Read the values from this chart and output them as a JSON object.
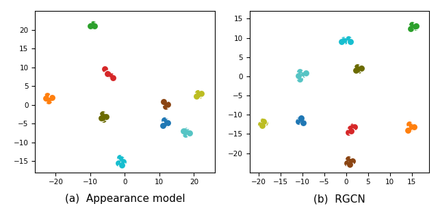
{
  "subplot_a": {
    "title": "(a)  Appearance model",
    "xlim": [
      -26,
      26
    ],
    "ylim": [
      -18,
      25
    ],
    "xticks": [
      -20,
      -10,
      0,
      10,
      20
    ],
    "yticks": [
      -15,
      -10,
      -5,
      0,
      5,
      10,
      15,
      20
    ],
    "clusters": [
      {
        "color": "#2ca02c",
        "points": [
          [
            -9.8,
            21.2
          ],
          [
            -9.2,
            21.5
          ],
          [
            -9.5,
            20.8
          ],
          [
            -10.0,
            21.0
          ],
          [
            -8.8,
            21.0
          ]
        ]
      },
      {
        "color": "#d62728",
        "points": [
          [
            -5.8,
            9.5
          ],
          [
            -4.5,
            8.2
          ],
          [
            -4.0,
            7.8
          ],
          [
            -3.5,
            7.3
          ],
          [
            -5.0,
            8.4
          ]
        ]
      },
      {
        "color": "#ff7f0e",
        "points": [
          [
            -22.5,
            2.5
          ],
          [
            -21.5,
            1.5
          ],
          [
            -22.0,
            1.0
          ],
          [
            -21.0,
            2.0
          ],
          [
            -22.8,
            1.8
          ]
        ]
      },
      {
        "color": "#8b4513",
        "points": [
          [
            11.5,
            0.5
          ],
          [
            12.0,
            0.0
          ],
          [
            11.8,
            -0.5
          ],
          [
            12.5,
            0.2
          ],
          [
            11.2,
            0.8
          ]
        ]
      },
      {
        "color": "#6b6b00",
        "points": [
          [
            -6.5,
            -2.5
          ],
          [
            -5.8,
            -3.0
          ],
          [
            -6.2,
            -3.8
          ],
          [
            -5.5,
            -3.2
          ],
          [
            -6.8,
            -3.5
          ]
        ]
      },
      {
        "color": "#bcbd22",
        "points": [
          [
            21.2,
            3.3
          ],
          [
            21.8,
            2.8
          ],
          [
            21.5,
            2.5
          ],
          [
            22.2,
            3.0
          ],
          [
            20.8,
            2.3
          ]
        ]
      },
      {
        "color": "#1f77b4",
        "points": [
          [
            11.5,
            -4.0
          ],
          [
            12.0,
            -4.5
          ],
          [
            11.8,
            -5.2
          ],
          [
            12.5,
            -4.8
          ],
          [
            11.0,
            -5.5
          ]
        ]
      },
      {
        "color": "#56c4c4",
        "points": [
          [
            17.5,
            -6.8
          ],
          [
            18.2,
            -7.2
          ],
          [
            17.5,
            -7.8
          ],
          [
            18.8,
            -7.5
          ],
          [
            17.0,
            -7.0
          ]
        ]
      },
      {
        "color": "#17becf",
        "points": [
          [
            -1.5,
            -14.0
          ],
          [
            -1.0,
            -14.5
          ],
          [
            -0.5,
            -15.2
          ],
          [
            -1.8,
            -15.5
          ],
          [
            -0.8,
            -16.0
          ]
        ]
      }
    ]
  },
  "subplot_b": {
    "title": "(b)  RGCN",
    "xlim": [
      -22,
      19
    ],
    "ylim": [
      -25,
      17
    ],
    "xticks": [
      -20,
      -15,
      -10,
      -5,
      0,
      5,
      10,
      15
    ],
    "yticks": [
      -20,
      -15,
      -10,
      -5,
      0,
      5,
      10,
      15
    ],
    "clusters": [
      {
        "color": "#2ca02c",
        "points": [
          [
            15.0,
            13.5
          ],
          [
            15.5,
            13.0
          ],
          [
            15.8,
            12.7
          ],
          [
            14.8,
            12.5
          ],
          [
            16.0,
            13.2
          ]
        ]
      },
      {
        "color": "#17becf",
        "points": [
          [
            -0.5,
            9.5
          ],
          [
            0.5,
            9.8
          ],
          [
            -0.2,
            9.2
          ],
          [
            1.0,
            9.0
          ],
          [
            -1.0,
            9.0
          ]
        ]
      },
      {
        "color": "#6b6b00",
        "points": [
          [
            2.5,
            2.5
          ],
          [
            3.0,
            2.0
          ],
          [
            2.8,
            1.5
          ],
          [
            3.5,
            2.2
          ],
          [
            2.2,
            1.5
          ]
        ]
      },
      {
        "color": "#56c4c4",
        "points": [
          [
            -10.5,
            1.2
          ],
          [
            -9.8,
            0.5
          ],
          [
            -10.5,
            -0.8
          ],
          [
            -9.2,
            0.8
          ],
          [
            -10.8,
            0.2
          ]
        ]
      },
      {
        "color": "#1f77b4",
        "points": [
          [
            -10.5,
            -11.0
          ],
          [
            -10.0,
            -11.5
          ],
          [
            -10.8,
            -11.8
          ],
          [
            -9.8,
            -12.0
          ],
          [
            -10.2,
            -10.8
          ]
        ]
      },
      {
        "color": "#bcbd22",
        "points": [
          [
            -19.0,
            -11.5
          ],
          [
            -18.5,
            -12.0
          ],
          [
            -19.5,
            -12.5
          ],
          [
            -18.8,
            -11.8
          ],
          [
            -19.2,
            -12.8
          ]
        ]
      },
      {
        "color": "#d62728",
        "points": [
          [
            1.5,
            -13.0
          ],
          [
            1.0,
            -13.5
          ],
          [
            0.5,
            -14.5
          ],
          [
            2.0,
            -13.2
          ],
          [
            1.2,
            -14.2
          ]
        ]
      },
      {
        "color": "#ff7f0e",
        "points": [
          [
            14.5,
            -12.5
          ],
          [
            15.0,
            -13.0
          ],
          [
            14.8,
            -13.5
          ],
          [
            15.5,
            -13.2
          ],
          [
            14.2,
            -14.0
          ]
        ]
      },
      {
        "color": "#8b4513",
        "points": [
          [
            0.5,
            -21.5
          ],
          [
            1.0,
            -22.0
          ],
          [
            0.2,
            -22.5
          ],
          [
            1.5,
            -22.0
          ],
          [
            0.8,
            -23.0
          ]
        ]
      }
    ]
  },
  "marker_size_outer": 55,
  "marker_size_inner": 18,
  "marker": "o",
  "fig_bgcolor": "white",
  "caption_a": "(a)  Appearance model",
  "caption_b": "(b)  RGCN",
  "caption_fontsize": 11
}
